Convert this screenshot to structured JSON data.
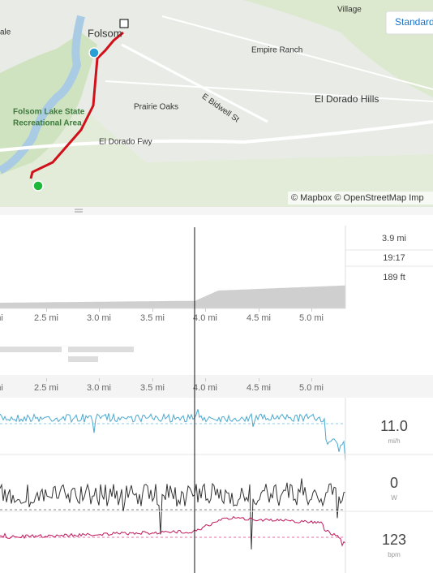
{
  "map": {
    "labels": [
      "ale",
      "Folsom",
      "Village",
      "Empire Ranch",
      "Prairie Oaks",
      "E Bidwell St",
      "El Dorado Hills",
      "Folsom Lake State",
      "Recreational Area",
      "El Dorado Fwy"
    ],
    "style_button": "Standard",
    "attribution": "© Mapbox © OpenStreetMap Imp"
  },
  "elevation": {
    "stats": [
      "3.9 mi",
      "19:17",
      "189 ft"
    ]
  },
  "x_labels": [
    "mi",
    "2.5 mi",
    "3.0 mi",
    "3.5 mi",
    "4.0 mi",
    "4.5 mi",
    "5.0 mi"
  ],
  "streams": [
    {
      "value": "11.0",
      "unit": "mi/h"
    },
    {
      "value": "0",
      "unit": "W"
    },
    {
      "value": "123",
      "unit": "bpm"
    }
  ]
}
